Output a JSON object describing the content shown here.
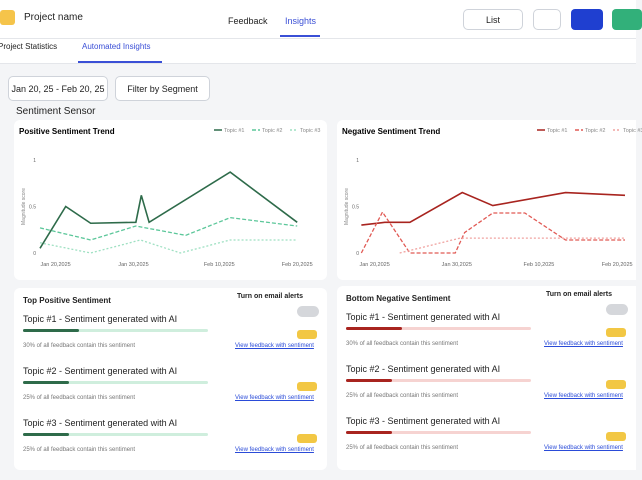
{
  "header": {
    "project_name": "Project name",
    "tabs": [
      "Feedback",
      "Insights"
    ],
    "view": "List"
  },
  "subtabs": [
    "Project Statistics",
    "Automated Insights"
  ],
  "filters": {
    "date_range": "Jan 20, 25 - Feb 20, 25",
    "segment": "Filter by Segment"
  },
  "section_title": "Sentiment Sensor",
  "chart_data": [
    {
      "type": "line",
      "title": "Positive Sentiment Trend",
      "y_label": "Magnitude score",
      "xlim": [
        -2,
        32
      ],
      "xticks": [
        {
          "value": 0,
          "label": "Jan 20,2025"
        },
        {
          "value": 10,
          "label": "Jan 30,2025"
        },
        {
          "value": 21,
          "label": "Feb 10,2025"
        },
        {
          "value": 31,
          "label": "Feb 20,2025"
        }
      ],
      "ylim": [
        0,
        1
      ],
      "yticks": [
        0,
        0.5,
        1
      ],
      "grid": false,
      "series": [
        {
          "name": "Topic #1",
          "color": "#2e6b4a",
          "dash": "solid",
          "x": [
            -2,
            1.3,
            4.5,
            10.3,
            11,
            12,
            22.4,
            31
          ],
          "values": [
            0.05,
            0.5,
            0.32,
            0.33,
            0.62,
            0.33,
            0.87,
            0.33
          ]
        },
        {
          "name": "Topic #2",
          "color": "#5cc79a",
          "dash": "dashed",
          "x": [
            -2,
            4.5,
            10.3,
            16.7,
            22.4,
            31
          ],
          "values": [
            0.27,
            0.14,
            0.29,
            0.19,
            0.38,
            0.29
          ]
        },
        {
          "name": "Topic #3",
          "color": "#9ee0c2",
          "dash": "dotted",
          "x": [
            -2,
            4.5,
            10.9,
            16,
            22.4,
            31
          ],
          "values": [
            0.11,
            0,
            0.14,
            0,
            0.14,
            0.14
          ]
        }
      ]
    },
    {
      "type": "line",
      "title": "Negative Sentiment Trend",
      "y_label": "Magnitude score",
      "xlim": [
        -2,
        32
      ],
      "xticks": [
        {
          "value": 0,
          "label": "Jan 20,2025"
        },
        {
          "value": 10.5,
          "label": "Jan 30,2025"
        },
        {
          "value": 21,
          "label": "Feb 10,2025"
        },
        {
          "value": 31,
          "label": "Feb 20,2025"
        }
      ],
      "ylim": [
        0,
        1
      ],
      "yticks": [
        0,
        0.5,
        1
      ],
      "grid": false,
      "series": [
        {
          "name": "Topic #1",
          "color": "#a8241f",
          "dash": "solid",
          "x": [
            -1.7,
            1.3,
            4.5,
            11.2,
            15.1,
            24.4,
            32
          ],
          "values": [
            0.3,
            0.33,
            0.33,
            0.65,
            0.51,
            0.65,
            0.62
          ]
        },
        {
          "name": "Topic #2",
          "color": "#e15a55",
          "dash": "dashed",
          "x": [
            -1.7,
            1,
            4.5,
            10.3,
            11.5,
            15.1,
            19.2,
            24.4,
            32
          ],
          "values": [
            0,
            0.44,
            0,
            0,
            0.22,
            0.43,
            0.43,
            0.14,
            0.14
          ]
        },
        {
          "name": "Topic #3",
          "color": "#f0a3a0",
          "dash": "dotted",
          "x": [
            3.2,
            10.9,
            21.2,
            32
          ],
          "values": [
            0,
            0.16,
            0.16,
            0.16
          ]
        }
      ]
    }
  ],
  "positive_panel": {
    "title": "Top Positive Sentiment",
    "alerts": "Turn on email alerts",
    "bar_color": "#2e6b4a",
    "track_color": "#cfeedd",
    "topics": [
      {
        "title": "Topic #1 - Sentiment generated with AI",
        "share": 30,
        "share_label": "30% of all feedback contain this sentiment",
        "link": "View feedback with sentiment"
      },
      {
        "title": "Topic #2 - Sentiment generated with AI",
        "share": 25,
        "share_label": "25% of all feedback contain this sentiment",
        "link": "View feedback with sentiment"
      },
      {
        "title": "Topic #3 - Sentiment generated with AI",
        "share": 25,
        "share_label": "25% of all feedback contain this sentiment",
        "link": "View feedback with sentiment"
      }
    ]
  },
  "negative_panel": {
    "title": "Bottom Negative Sentiment",
    "alerts": "Turn on email alerts",
    "bar_color": "#a8241f",
    "track_color": "#f6d3d1",
    "topics": [
      {
        "title": "Topic #1 - Sentiment generated with AI",
        "share": 30,
        "share_label": "30% of all feedback contain this sentiment",
        "link": "View feedback with sentiment"
      },
      {
        "title": "Topic #2 - Sentiment generated with AI",
        "share": 25,
        "share_label": "25% of all feedback contain this sentiment",
        "link": "View feedback with sentiment"
      },
      {
        "title": "Topic #3 - Sentiment generated with AI",
        "share": 25,
        "share_label": "25% of all feedback contain this sentiment",
        "link": "View feedback with sentiment"
      }
    ]
  }
}
